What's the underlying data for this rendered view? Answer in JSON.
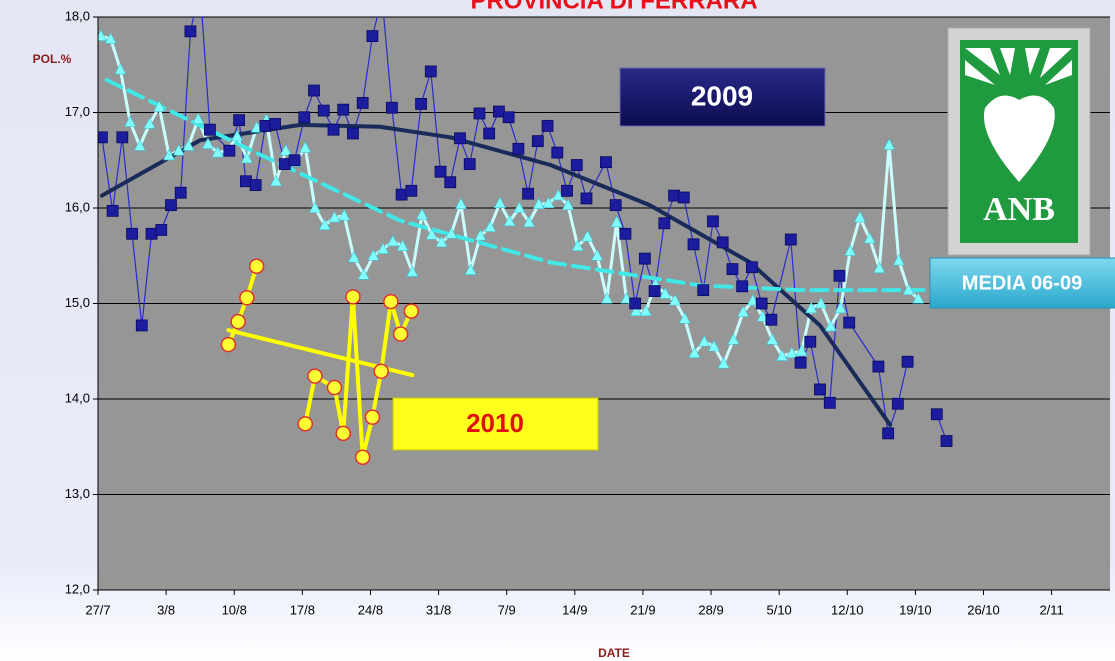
{
  "chart_data": {
    "type": "line",
    "title": "PROVINCIA DI FERRARA",
    "ylabel": "POL.%",
    "xlabel": "DATE",
    "logo": "ANB",
    "xlim": [
      0,
      104
    ],
    "xticks": [
      {
        "value": 0,
        "label": "27/7"
      },
      {
        "value": 7,
        "label": "3/8"
      },
      {
        "value": 14,
        "label": "10/8"
      },
      {
        "value": 21,
        "label": "17/8"
      },
      {
        "value": 28,
        "label": "24/8"
      },
      {
        "value": 35,
        "label": "31/8"
      },
      {
        "value": 42,
        "label": "7/9"
      },
      {
        "value": 49,
        "label": "14/9"
      },
      {
        "value": 56,
        "label": "21/9"
      },
      {
        "value": 63,
        "label": "28/9"
      },
      {
        "value": 70,
        "label": "5/10"
      },
      {
        "value": 77,
        "label": "12/10"
      },
      {
        "value": 84,
        "label": "19/10"
      },
      {
        "value": 91,
        "label": "26/10"
      },
      {
        "value": 98,
        "label": "2/11"
      }
    ],
    "ylim": [
      12,
      18
    ],
    "yticks": [
      {
        "value": 12,
        "label": "12,0"
      },
      {
        "value": 13,
        "label": "13,0"
      },
      {
        "value": 14,
        "label": "14,0"
      },
      {
        "value": 15,
        "label": "15,0"
      },
      {
        "value": 16,
        "label": "16,0"
      },
      {
        "value": 17,
        "label": "17,0"
      },
      {
        "value": 18,
        "label": "18,0"
      }
    ],
    "grid": true,
    "series": [
      {
        "name": "2009",
        "color": "#1c1c9e",
        "line_color": "#2a2ad0",
        "marker": "square",
        "x": [
          0.4,
          1.5,
          2.5,
          3.5,
          4.5,
          5.5,
          6.5,
          7.5,
          8.5,
          9.5,
          10.5,
          11.5,
          13.5,
          14.5,
          15.2,
          16.2,
          17.2,
          18.2,
          19.2,
          20.2,
          21.2,
          22.2,
          23.2,
          24.2,
          25.2,
          26.2,
          27.2,
          28.2,
          29.2,
          30.2,
          31.2,
          32.2,
          33.2,
          34.2,
          35.2,
          36.2,
          37.2,
          38.2,
          39.2,
          40.2,
          41.2,
          42.2,
          43.2,
          44.2,
          45.2,
          46.2,
          47.2,
          48.2,
          49.2,
          50.2,
          52.2,
          53.2,
          54.2,
          55.2,
          56.2,
          57.2,
          58.2,
          59.2,
          60.2,
          61.2,
          62.2,
          63.2,
          64.2,
          65.2,
          66.2,
          67.2,
          68.2,
          69.2,
          71.2,
          72.2,
          73.2,
          74.2,
          75.2,
          76.2,
          77.2,
          80.2,
          81.2,
          82.2,
          83.2,
          null,
          86.2,
          87.2
        ],
        "values": [
          16.74,
          15.97,
          16.74,
          15.73,
          14.77,
          15.73,
          15.77,
          16.03,
          16.16,
          17.85,
          18.3,
          16.82,
          16.6,
          16.92,
          16.28,
          16.24,
          16.86,
          16.88,
          16.46,
          16.5,
          16.95,
          17.23,
          17.02,
          16.82,
          17.03,
          16.78,
          17.1,
          17.8,
          18.2,
          17.05,
          16.14,
          16.18,
          17.09,
          17.43,
          16.38,
          16.27,
          16.73,
          16.46,
          16.99,
          16.78,
          17.01,
          16.95,
          16.62,
          16.15,
          16.7,
          16.86,
          16.58,
          16.18,
          16.45,
          16.1,
          16.48,
          16.03,
          15.73,
          15.0,
          15.47,
          15.13,
          15.84,
          16.13,
          16.11,
          15.62,
          15.14,
          15.86,
          15.64,
          15.36,
          15.18,
          15.38,
          15.0,
          14.83,
          15.67,
          14.38,
          14.6,
          14.1,
          13.96,
          15.29,
          14.8,
          14.34,
          13.64,
          13.95,
          14.39,
          null,
          13.84,
          13.56
        ],
        "trend": {
          "color": "#1a2a5a",
          "x": [
            0.4,
            10.5,
            20.8,
            29.0,
            36.2,
            46.5,
            56.7,
            67.0,
            74.2,
            81.4
          ],
          "values": [
            16.13,
            16.71,
            16.87,
            16.85,
            16.74,
            16.45,
            16.03,
            15.43,
            14.77,
            13.73
          ]
        }
      },
      {
        "name": "MEDIA 06-09",
        "color": "#80ffff",
        "line_color": "#c8ffff",
        "marker": "triangle",
        "x": [
          0.3,
          1.3,
          2.3,
          3.3,
          4.3,
          5.3,
          6.3,
          7.3,
          8.3,
          9.3,
          10.3,
          11.3,
          12.3,
          13.3,
          14.3,
          15.3,
          16.3,
          17.3,
          18.3,
          19.3,
          20.3,
          21.3,
          22.3,
          23.3,
          24.3,
          25.3,
          26.3,
          27.3,
          28.3,
          29.3,
          30.3,
          31.3,
          32.3,
          33.3,
          34.3,
          35.3,
          36.3,
          37.3,
          38.3,
          39.3,
          40.3,
          41.3,
          42.3,
          43.3,
          44.3,
          45.3,
          46.3,
          47.3,
          48.3,
          49.3,
          50.3,
          51.3,
          52.3,
          53.3,
          54.3,
          55.3,
          56.3,
          57.3,
          58.3,
          59.3,
          60.3,
          61.3,
          62.3,
          63.3,
          64.3,
          65.3,
          66.3,
          67.3,
          68.3,
          69.3,
          70.3,
          71.3,
          72.3,
          73.3,
          74.3,
          75.3,
          76.3,
          77.3,
          78.3,
          79.3,
          80.3,
          81.3,
          82.3,
          83.3,
          84.3
        ],
        "values": [
          17.8,
          17.77,
          17.45,
          16.9,
          16.65,
          16.88,
          17.06,
          16.55,
          16.6,
          16.65,
          16.93,
          16.67,
          16.58,
          16.6,
          16.75,
          16.52,
          16.84,
          16.92,
          16.28,
          16.6,
          16.48,
          16.63,
          16.0,
          15.82,
          15.9,
          15.92,
          15.48,
          15.3,
          15.5,
          15.57,
          15.65,
          15.6,
          15.33,
          15.93,
          15.72,
          15.64,
          15.73,
          16.04,
          15.35,
          15.71,
          15.8,
          16.05,
          15.86,
          16.0,
          15.85,
          16.04,
          16.05,
          16.13,
          16.03,
          15.6,
          15.7,
          15.5,
          15.05,
          15.85,
          15.05,
          14.92,
          14.92,
          15.2,
          15.1,
          15.03,
          14.84,
          14.48,
          14.6,
          14.55,
          14.37,
          14.62,
          14.91,
          15.03,
          14.86,
          14.62,
          14.45,
          14.48,
          14.5,
          14.95,
          15.0,
          14.76,
          14.95,
          15.55,
          15.9,
          15.68,
          15.37,
          16.66,
          15.45,
          15.14,
          15.05
        ],
        "trend": {
          "color": "#40e8e8",
          "dashed": true,
          "x": [
            0.9,
            15.6,
            31.0,
            46.5,
            61.9,
            72.1,
            85.0
          ],
          "values": [
            17.34,
            16.61,
            15.87,
            15.43,
            15.19,
            15.14,
            15.14
          ]
        }
      },
      {
        "name": "2010",
        "color": "#ffff33",
        "line_color": "#ffff00",
        "edge_color": "#e03030",
        "marker": "circle",
        "x": [
          13.4,
          14.4,
          15.3,
          16.3,
          null,
          21.3,
          22.3,
          24.3,
          25.2,
          26.2,
          27.2,
          28.2,
          29.1,
          30.1,
          31.1,
          32.2
        ],
        "values": [
          14.57,
          14.81,
          15.06,
          15.39,
          null,
          13.74,
          14.24,
          14.12,
          13.64,
          15.07,
          13.39,
          13.81,
          14.29,
          15.02,
          14.68,
          14.92
        ],
        "trend": {
          "color": "#ffff00",
          "x": [
            13.4,
            32.3
          ],
          "values": [
            14.72,
            14.25
          ]
        }
      }
    ]
  }
}
